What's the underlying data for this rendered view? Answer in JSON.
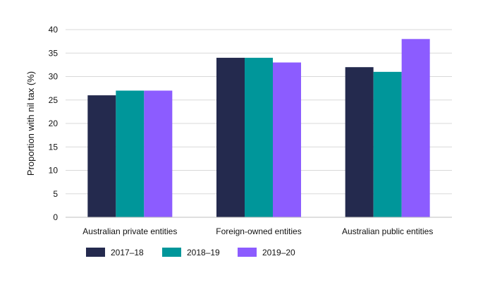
{
  "chart_data": {
    "type": "bar",
    "title": "",
    "xlabel": "",
    "ylabel": "Proportion with nil tax (%)",
    "categories": [
      "Australian private entities",
      "Foreign-owned entities",
      "Australian public entities"
    ],
    "series": [
      {
        "name": "2017–18",
        "color": "#242a4e",
        "values": [
          26,
          34,
          32
        ]
      },
      {
        "name": "2018–19",
        "color": "#00969a",
        "values": [
          27,
          34,
          31
        ]
      },
      {
        "name": "2019–20",
        "color": "#8c5cff",
        "values": [
          27,
          33,
          38
        ]
      }
    ],
    "ylim": [
      0,
      40
    ],
    "yticks": [
      0,
      5,
      10,
      15,
      20,
      25,
      30,
      35,
      40
    ],
    "grid": true,
    "legend_position": "bottom"
  }
}
